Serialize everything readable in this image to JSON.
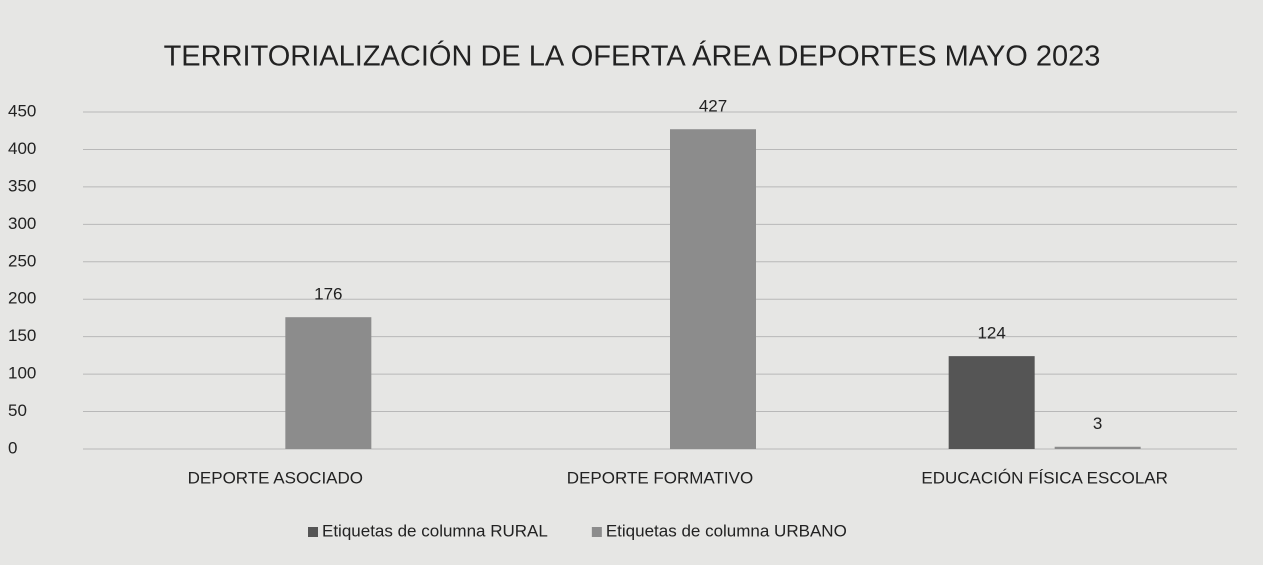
{
  "chart_data": {
    "type": "bar",
    "title": "TERRITORIALIZACIÓN DE LA OFERTA ÁREA DEPORTES MAYO 2023",
    "categories": [
      "DEPORTE ASOCIADO",
      "DEPORTE FORMATIVO",
      "EDUCACIÓN FÍSICA ESCOLAR"
    ],
    "series": [
      {
        "name": "Etiquetas de columna RURAL",
        "color": "#555555",
        "values": [
          null,
          null,
          124
        ]
      },
      {
        "name": "Etiquetas de columna URBANO",
        "color": "#8c8c8c",
        "values": [
          176,
          427,
          3
        ]
      }
    ],
    "ylim": [
      0,
      450
    ],
    "yticks": [
      0,
      50,
      100,
      150,
      200,
      250,
      300,
      350,
      400,
      450
    ],
    "grid": true,
    "legend": "bottom"
  }
}
